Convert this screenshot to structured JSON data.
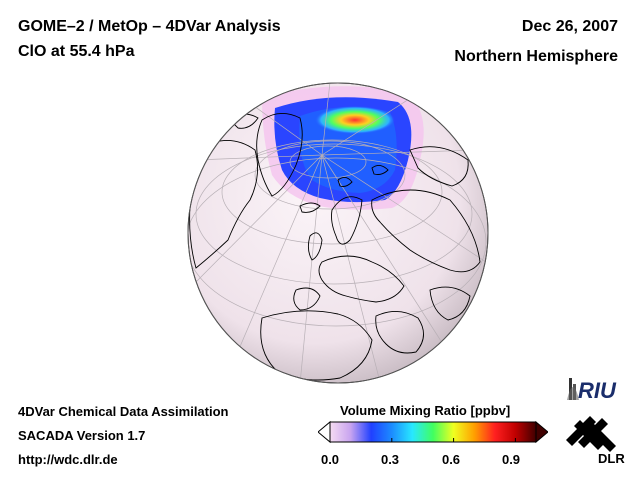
{
  "header": {
    "title": "GOME–2 / MetOp – 4DVar Analysis",
    "subtitle": "ClO at 55.4 hPa",
    "date": "Dec 26, 2007",
    "region": "Northern Hemisphere"
  },
  "footer": {
    "line1": "4DVar Chemical Data Assimilation",
    "line2": "SACADA Version 1.7",
    "line3": "http://wdc.dlr.de"
  },
  "colorbar": {
    "title": "Volume Mixing Ratio [ppbv]",
    "ticks": [
      "0.0",
      "0.3",
      "0.6",
      "0.9"
    ],
    "tick_values": [
      0.0,
      0.3,
      0.6,
      0.9
    ],
    "range": [
      0.0,
      1.0
    ],
    "colors": [
      "#f6dcf2",
      "#c8a4f0",
      "#2040ff",
      "#1c8cff",
      "#28e8ff",
      "#40ff60",
      "#f0ff20",
      "#ffa000",
      "#ff2020",
      "#c00000",
      "#400000"
    ]
  },
  "logos": {
    "riu": "RIU",
    "dlr": "DLR"
  },
  "map": {
    "background_color": "#f2e8ee",
    "icons": [
      "orthographic-globe",
      "coastline-outlines",
      "lat-lon-grid"
    ]
  }
}
